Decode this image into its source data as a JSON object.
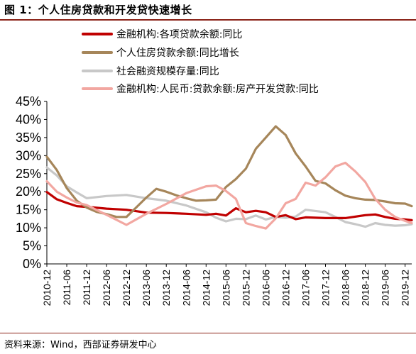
{
  "title": "图 1：个人住房贷款和开发贷快速增长",
  "source": "资料来源：Wind，西部证券研发中心",
  "chart_data": {
    "type": "line",
    "ylim": [
      0,
      45
    ],
    "y_ticks": [
      "45%",
      "40%",
      "35%",
      "30%",
      "25%",
      "20%",
      "15%",
      "10%",
      "5%",
      "0%"
    ],
    "y_tick_values": [
      45,
      40,
      35,
      30,
      25,
      20,
      15,
      10,
      5,
      0
    ],
    "x_tick_labels": [
      "2010-12",
      "2011-06",
      "2011-12",
      "2012-06",
      "2012-12",
      "2013-06",
      "2013-12",
      "2014-06",
      "2014-12",
      "2015-06",
      "2015-12",
      "2016-06",
      "2016-12",
      "2017-06",
      "2017-12",
      "2018-06",
      "2018-12",
      "2019-06",
      "2019-12"
    ],
    "x_start": "2010-12",
    "x_end": "2020-02",
    "grid": false,
    "legend_position": "top",
    "series": [
      {
        "name": "金融机构:各项贷款余额:同比",
        "color": "#c00000",
        "points": [
          [
            "2010-12",
            19.9
          ],
          [
            "2011-03",
            17.9
          ],
          [
            "2011-06",
            16.9
          ],
          [
            "2011-09",
            16.0
          ],
          [
            "2011-12",
            15.8
          ],
          [
            "2012-06",
            15.3
          ],
          [
            "2012-12",
            15.0
          ],
          [
            "2013-06",
            14.2
          ],
          [
            "2013-12",
            14.1
          ],
          [
            "2014-06",
            13.9
          ],
          [
            "2014-12",
            13.6
          ],
          [
            "2015-03",
            13.9
          ],
          [
            "2015-06",
            13.4
          ],
          [
            "2015-09",
            15.4
          ],
          [
            "2015-12",
            14.3
          ],
          [
            "2016-03",
            14.7
          ],
          [
            "2016-06",
            14.3
          ],
          [
            "2016-09",
            13.0
          ],
          [
            "2016-12",
            13.5
          ],
          [
            "2017-03",
            12.4
          ],
          [
            "2017-06",
            12.9
          ],
          [
            "2017-12",
            12.7
          ],
          [
            "2018-06",
            12.7
          ],
          [
            "2018-12",
            13.5
          ],
          [
            "2019-03",
            13.7
          ],
          [
            "2019-06",
            13.0
          ],
          [
            "2019-09",
            12.5
          ],
          [
            "2019-12",
            12.3
          ],
          [
            "2020-02",
            12.1
          ]
        ]
      },
      {
        "name": "个人住房贷款余额:同比增长",
        "color": "#a6865a",
        "points": [
          [
            "2010-12",
            29.7
          ],
          [
            "2011-03",
            26.0
          ],
          [
            "2011-06",
            21.0
          ],
          [
            "2011-09",
            17.5
          ],
          [
            "2011-12",
            15.6
          ],
          [
            "2012-03",
            14.4
          ],
          [
            "2012-06",
            13.8
          ],
          [
            "2012-09",
            13.0
          ],
          [
            "2012-12",
            13.0
          ],
          [
            "2013-03",
            15.7
          ],
          [
            "2013-06",
            18.4
          ],
          [
            "2013-09",
            20.8
          ],
          [
            "2013-12",
            20.0
          ],
          [
            "2014-03",
            19.0
          ],
          [
            "2014-06",
            18.2
          ],
          [
            "2014-09",
            17.5
          ],
          [
            "2014-12",
            17.6
          ],
          [
            "2015-03",
            17.8
          ],
          [
            "2015-06",
            21.3
          ],
          [
            "2015-09",
            23.5
          ],
          [
            "2015-12",
            26.4
          ],
          [
            "2016-03",
            31.9
          ],
          [
            "2016-06",
            35.0
          ],
          [
            "2016-09",
            38.1
          ],
          [
            "2016-12",
            35.7
          ],
          [
            "2017-03",
            30.6
          ],
          [
            "2017-06",
            27.0
          ],
          [
            "2017-09",
            23.0
          ],
          [
            "2017-12",
            22.3
          ],
          [
            "2018-03",
            20.4
          ],
          [
            "2018-06",
            18.9
          ],
          [
            "2018-09",
            18.2
          ],
          [
            "2018-12",
            17.8
          ],
          [
            "2019-03",
            17.7
          ],
          [
            "2019-06",
            17.3
          ],
          [
            "2019-09",
            16.8
          ],
          [
            "2019-12",
            16.7
          ],
          [
            "2020-02",
            16.0
          ]
        ]
      },
      {
        "name": "社会融资规模存量:同比",
        "color": "#c8c8c8",
        "points": [
          [
            "2010-12",
            26.7
          ],
          [
            "2011-03",
            24.5
          ],
          [
            "2011-06",
            21.5
          ],
          [
            "2011-09",
            19.8
          ],
          [
            "2011-12",
            18.2
          ],
          [
            "2012-06",
            18.8
          ],
          [
            "2012-12",
            19.1
          ],
          [
            "2013-06",
            18.2
          ],
          [
            "2013-12",
            17.5
          ],
          [
            "2014-06",
            16.2
          ],
          [
            "2014-12",
            14.3
          ],
          [
            "2015-03",
            12.8
          ],
          [
            "2015-06",
            11.8
          ],
          [
            "2015-09",
            12.5
          ],
          [
            "2015-12",
            12.4
          ],
          [
            "2016-03",
            13.4
          ],
          [
            "2016-06",
            12.3
          ],
          [
            "2016-09",
            13.0
          ],
          [
            "2016-12",
            12.8
          ],
          [
            "2017-03",
            13.1
          ],
          [
            "2017-06",
            15.0
          ],
          [
            "2017-12",
            14.3
          ],
          [
            "2018-03",
            13.0
          ],
          [
            "2018-06",
            11.6
          ],
          [
            "2018-09",
            11.0
          ],
          [
            "2018-12",
            10.3
          ],
          [
            "2019-03",
            11.3
          ],
          [
            "2019-06",
            10.8
          ],
          [
            "2019-09",
            10.6
          ],
          [
            "2019-12",
            10.7
          ],
          [
            "2020-02",
            11.0
          ]
        ]
      },
      {
        "name": "金融机构:人民币:贷款余额:房产开发贷款:同比",
        "color": "#f2a7a1",
        "points": [
          [
            "2010-12",
            22.9
          ],
          [
            "2011-03",
            20.0
          ],
          [
            "2011-06",
            18.4
          ],
          [
            "2011-09",
            17.0
          ],
          [
            "2011-12",
            16.3
          ],
          [
            "2012-06",
            13.6
          ],
          [
            "2012-12",
            10.8
          ],
          [
            "2013-06",
            13.9
          ],
          [
            "2013-12",
            16.6
          ],
          [
            "2014-06",
            19.6
          ],
          [
            "2014-12",
            21.5
          ],
          [
            "2015-03",
            21.7
          ],
          [
            "2015-06",
            20.2
          ],
          [
            "2015-09",
            18.0
          ],
          [
            "2015-12",
            11.3
          ],
          [
            "2016-03",
            10.5
          ],
          [
            "2016-06",
            9.8
          ],
          [
            "2016-09",
            12.6
          ],
          [
            "2016-12",
            16.8
          ],
          [
            "2017-03",
            18.0
          ],
          [
            "2017-06",
            22.5
          ],
          [
            "2017-09",
            21.7
          ],
          [
            "2017-12",
            24.0
          ],
          [
            "2018-03",
            27.0
          ],
          [
            "2018-06",
            28.0
          ],
          [
            "2018-09",
            25.6
          ],
          [
            "2018-12",
            22.7
          ],
          [
            "2019-03",
            18.0
          ],
          [
            "2019-06",
            15.0
          ],
          [
            "2019-09",
            13.0
          ],
          [
            "2019-12",
            11.9
          ],
          [
            "2020-02",
            11.3
          ]
        ]
      }
    ]
  }
}
